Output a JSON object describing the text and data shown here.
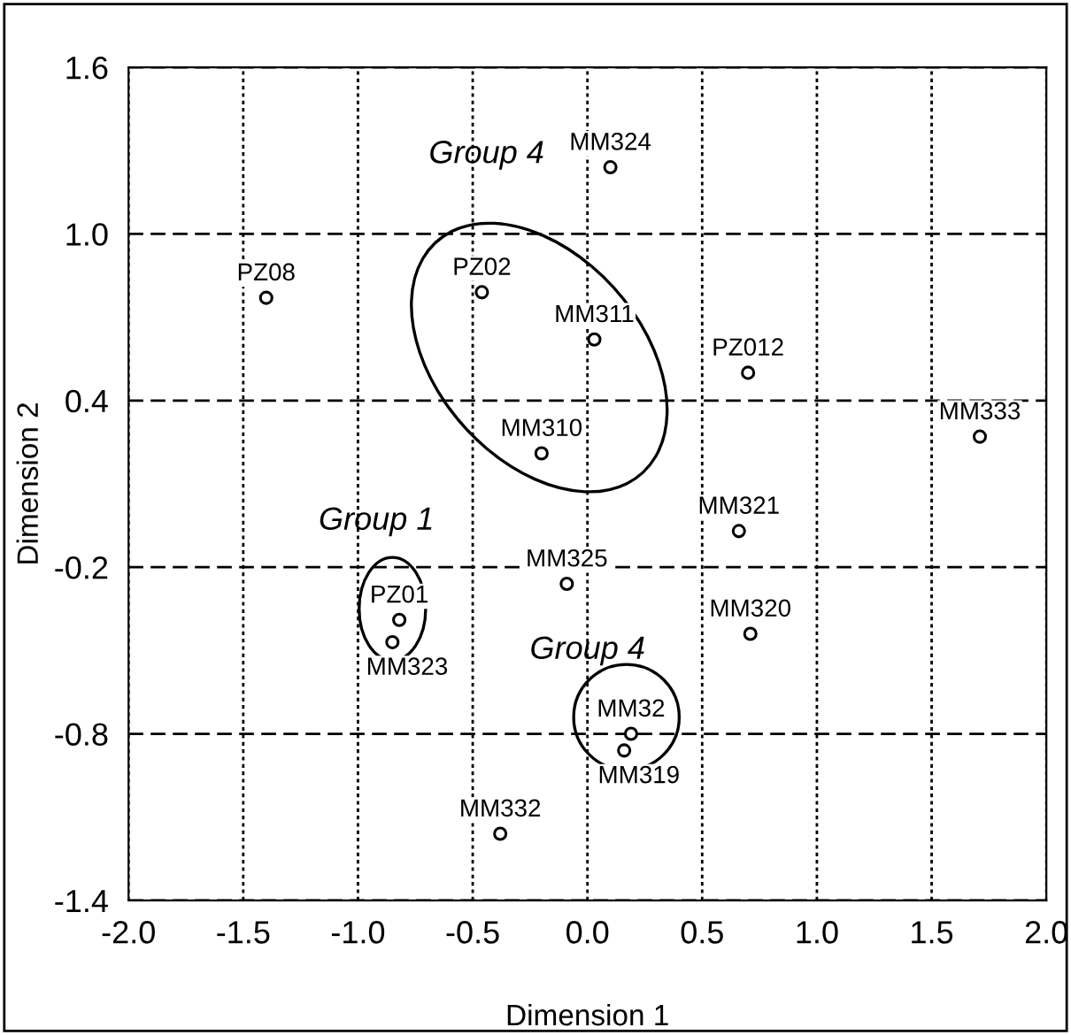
{
  "chart_data": {
    "type": "scatter",
    "xlabel": "Dimension 1",
    "ylabel": "Dimension 2",
    "xlim": [
      -2.0,
      2.0
    ],
    "ylim": [
      -1.4,
      1.6
    ],
    "xticks": [
      {
        "value": -2.0,
        "label": "-2.0"
      },
      {
        "value": -1.5,
        "label": "-1.5"
      },
      {
        "value": -1.0,
        "label": "-1.0"
      },
      {
        "value": -0.5,
        "label": "-0.5"
      },
      {
        "value": 0.0,
        "label": "0.0"
      },
      {
        "value": 0.5,
        "label": "0.5"
      },
      {
        "value": 1.0,
        "label": "1.0"
      },
      {
        "value": 1.5,
        "label": "1.5"
      },
      {
        "value": 2.0,
        "label": "2.0"
      }
    ],
    "yticks": [
      {
        "value": -1.4,
        "label": "-1.4"
      },
      {
        "value": -0.8,
        "label": "-0.8"
      },
      {
        "value": -0.2,
        "label": "-0.2"
      },
      {
        "value": 0.4,
        "label": "0.4"
      },
      {
        "value": 1.0,
        "label": "1.0"
      },
      {
        "value": 1.6,
        "label": "1.6"
      }
    ],
    "grid": true,
    "marker": "circle",
    "legend": false,
    "series": [
      {
        "color": "#000000",
        "x": [
          0.1,
          -1.4,
          -0.46,
          0.03,
          0.7,
          1.71,
          -0.2,
          0.66,
          -0.09,
          -0.82,
          -0.85,
          0.71,
          0.19,
          0.16,
          -0.38
        ],
        "values": [
          1.24,
          0.77,
          0.79,
          0.62,
          0.5,
          0.27,
          0.21,
          -0.07,
          -0.26,
          -0.39,
          -0.47,
          -0.44,
          -0.8,
          -0.86,
          -1.16
        ]
      }
    ],
    "annotations": [
      {
        "text": "MM324",
        "x": 0.1,
        "y": 1.24
      },
      {
        "text": "PZ08",
        "x": -1.4,
        "y": 0.77
      },
      {
        "text": "PZ02",
        "x": -0.46,
        "y": 0.79
      },
      {
        "text": "MM311",
        "x": 0.03,
        "y": 0.62
      },
      {
        "text": "PZ012",
        "x": 0.7,
        "y": 0.5
      },
      {
        "text": "MM333",
        "x": 1.71,
        "y": 0.27
      },
      {
        "text": "MM310",
        "x": -0.2,
        "y": 0.21
      },
      {
        "text": "MM321",
        "x": 0.66,
        "y": -0.07
      },
      {
        "text": "MM325",
        "x": -0.09,
        "y": -0.26
      },
      {
        "text": "PZ01",
        "x": -0.82,
        "y": -0.39
      },
      {
        "text": "MM323",
        "x": -0.85,
        "y": -0.47
      },
      {
        "text": "MM320",
        "x": 0.71,
        "y": -0.44
      },
      {
        "text": "MM32",
        "x": 0.19,
        "y": -0.8
      },
      {
        "text": "MM319",
        "x": 0.16,
        "y": -0.86
      },
      {
        "text": "MM332",
        "x": -0.38,
        "y": -1.16
      },
      "Group 4",
      "Group 1",
      "Group 4"
    ]
  }
}
